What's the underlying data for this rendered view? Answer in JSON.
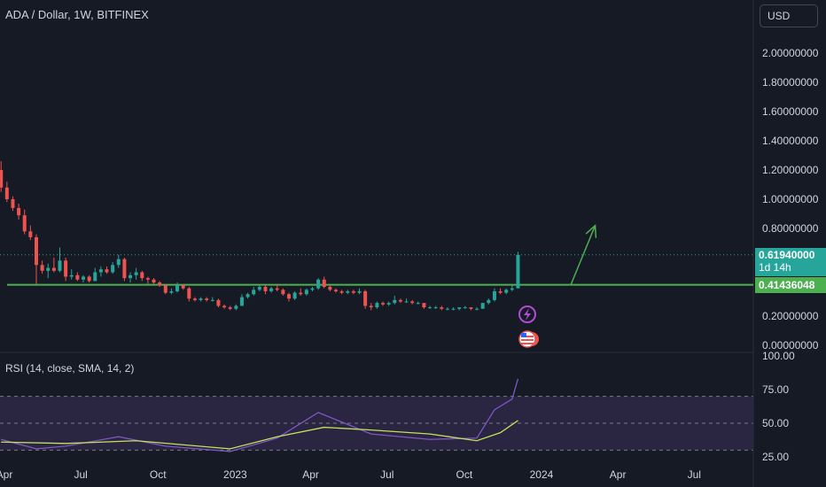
{
  "header": {
    "symbol_title": "ADA / Dollar, 1W, BITFINEX",
    "currency_button": "USD"
  },
  "price_axis": {
    "ticks": [
      "2.00000000",
      "1.80000000",
      "1.60000000",
      "1.40000000",
      "1.20000000",
      "1.00000000",
      "0.80000000",
      "0.20000000",
      "0.00000000"
    ]
  },
  "price_tags": {
    "current_price": "0.61940000",
    "countdown": "1d 14h",
    "level_price": "0.41436048"
  },
  "rsi_panel": {
    "title": "RSI (14, close, SMA, 14, 2)",
    "ticks": [
      "100.00",
      "75.00",
      "50.00",
      "25.00"
    ]
  },
  "time_axis": {
    "labels": [
      "Apr",
      "Jul",
      "Oct",
      "2023",
      "Apr",
      "Jul",
      "Oct",
      "2024",
      "Apr",
      "Jul"
    ]
  },
  "colors": {
    "up": "#26a69a",
    "down": "#ef5350",
    "support_line": "#4caf50",
    "rsi_line": "#7e57c2",
    "rsi_ma": "#c5e15e",
    "rsi_band": "#2a2540",
    "background": "#161a25"
  },
  "icons": [
    "lightning-event-icon",
    "us-flag-event-icon"
  ],
  "chart_data": [
    {
      "type": "candlestick",
      "title": "ADA / Dollar, 1W, BITFINEX",
      "ylim": [
        0,
        2.1
      ],
      "x_range": [
        "2022-04-01",
        "2024-09-01"
      ],
      "support_level": 0.41436048,
      "current_price": 0.6194,
      "projection_arrow": {
        "from": [
          "2024-02-05",
          0.41436048
        ],
        "to": [
          "2024-03-05",
          0.82
        ]
      },
      "ohlc": [
        [
          "2022-03-28",
          1.2,
          1.26,
          1.05,
          1.08
        ],
        [
          "2022-04-04",
          1.08,
          1.12,
          0.98,
          1.0
        ],
        [
          "2022-04-11",
          1.0,
          1.02,
          0.92,
          0.94
        ],
        [
          "2022-04-18",
          0.94,
          0.97,
          0.86,
          0.89
        ],
        [
          "2022-04-25",
          0.89,
          0.93,
          0.76,
          0.78
        ],
        [
          "2022-05-02",
          0.78,
          0.82,
          0.72,
          0.74
        ],
        [
          "2022-05-09",
          0.74,
          0.76,
          0.42,
          0.55
        ],
        [
          "2022-05-16",
          0.55,
          0.58,
          0.49,
          0.51
        ],
        [
          "2022-05-23",
          0.51,
          0.56,
          0.46,
          0.53
        ],
        [
          "2022-05-30",
          0.53,
          0.6,
          0.5,
          0.51
        ],
        [
          "2022-06-06",
          0.51,
          0.67,
          0.5,
          0.58
        ],
        [
          "2022-06-13",
          0.58,
          0.6,
          0.44,
          0.47
        ],
        [
          "2022-06-20",
          0.47,
          0.52,
          0.45,
          0.48
        ],
        [
          "2022-06-27",
          0.48,
          0.5,
          0.44,
          0.45
        ],
        [
          "2022-07-04",
          0.45,
          0.48,
          0.43,
          0.47
        ],
        [
          "2022-07-11",
          0.47,
          0.48,
          0.43,
          0.44
        ],
        [
          "2022-07-18",
          0.44,
          0.53,
          0.44,
          0.5
        ],
        [
          "2022-07-25",
          0.5,
          0.54,
          0.47,
          0.52
        ],
        [
          "2022-08-01",
          0.52,
          0.54,
          0.49,
          0.5
        ],
        [
          "2022-08-08",
          0.5,
          0.57,
          0.49,
          0.55
        ],
        [
          "2022-08-15",
          0.55,
          0.62,
          0.53,
          0.59
        ],
        [
          "2022-08-22",
          0.59,
          0.6,
          0.44,
          0.46
        ],
        [
          "2022-08-29",
          0.46,
          0.5,
          0.43,
          0.48
        ],
        [
          "2022-09-05",
          0.48,
          0.53,
          0.45,
          0.5
        ],
        [
          "2022-09-12",
          0.5,
          0.51,
          0.44,
          0.46
        ],
        [
          "2022-09-19",
          0.46,
          0.47,
          0.42,
          0.45
        ],
        [
          "2022-09-26",
          0.45,
          0.46,
          0.42,
          0.43
        ],
        [
          "2022-10-03",
          0.43,
          0.44,
          0.4,
          0.41
        ],
        [
          "2022-10-10",
          0.41,
          0.42,
          0.35,
          0.36
        ],
        [
          "2022-10-17",
          0.36,
          0.39,
          0.35,
          0.37
        ],
        [
          "2022-10-24",
          0.37,
          0.43,
          0.36,
          0.41
        ],
        [
          "2022-10-31",
          0.41,
          0.42,
          0.38,
          0.39
        ],
        [
          "2022-11-07",
          0.39,
          0.4,
          0.3,
          0.32
        ],
        [
          "2022-11-14",
          0.32,
          0.33,
          0.3,
          0.31
        ],
        [
          "2022-11-21",
          0.31,
          0.33,
          0.3,
          0.32
        ],
        [
          "2022-11-28",
          0.32,
          0.33,
          0.3,
          0.31
        ],
        [
          "2022-12-05",
          0.31,
          0.33,
          0.3,
          0.31
        ],
        [
          "2022-12-12",
          0.31,
          0.32,
          0.26,
          0.27
        ],
        [
          "2022-12-19",
          0.27,
          0.28,
          0.25,
          0.26
        ],
        [
          "2022-12-26",
          0.26,
          0.27,
          0.24,
          0.25
        ],
        [
          "2023-01-02",
          0.25,
          0.28,
          0.24,
          0.27
        ],
        [
          "2023-01-09",
          0.27,
          0.35,
          0.27,
          0.33
        ],
        [
          "2023-01-16",
          0.33,
          0.36,
          0.32,
          0.35
        ],
        [
          "2023-01-23",
          0.35,
          0.4,
          0.34,
          0.38
        ],
        [
          "2023-01-30",
          0.38,
          0.41,
          0.37,
          0.4
        ],
        [
          "2023-02-06",
          0.4,
          0.41,
          0.35,
          0.37
        ],
        [
          "2023-02-13",
          0.37,
          0.4,
          0.36,
          0.39
        ],
        [
          "2023-02-20",
          0.39,
          0.42,
          0.37,
          0.38
        ],
        [
          "2023-02-27",
          0.38,
          0.39,
          0.34,
          0.35
        ],
        [
          "2023-03-06",
          0.35,
          0.36,
          0.3,
          0.32
        ],
        [
          "2023-03-13",
          0.32,
          0.37,
          0.31,
          0.36
        ],
        [
          "2023-03-20",
          0.36,
          0.39,
          0.34,
          0.35
        ],
        [
          "2023-03-27",
          0.35,
          0.39,
          0.34,
          0.38
        ],
        [
          "2023-04-03",
          0.38,
          0.4,
          0.37,
          0.39
        ],
        [
          "2023-04-10",
          0.39,
          0.46,
          0.38,
          0.45
        ],
        [
          "2023-04-17",
          0.45,
          0.47,
          0.39,
          0.4
        ],
        [
          "2023-04-24",
          0.4,
          0.41,
          0.37,
          0.38
        ],
        [
          "2023-05-01",
          0.38,
          0.39,
          0.36,
          0.37
        ],
        [
          "2023-05-08",
          0.37,
          0.38,
          0.35,
          0.36
        ],
        [
          "2023-05-15",
          0.36,
          0.38,
          0.35,
          0.37
        ],
        [
          "2023-05-22",
          0.37,
          0.38,
          0.35,
          0.36
        ],
        [
          "2023-05-29",
          0.36,
          0.39,
          0.35,
          0.37
        ],
        [
          "2023-06-05",
          0.37,
          0.38,
          0.25,
          0.27
        ],
        [
          "2023-06-12",
          0.27,
          0.29,
          0.24,
          0.26
        ],
        [
          "2023-06-19",
          0.26,
          0.3,
          0.25,
          0.29
        ],
        [
          "2023-06-26",
          0.29,
          0.3,
          0.27,
          0.28
        ],
        [
          "2023-07-03",
          0.28,
          0.3,
          0.27,
          0.29
        ],
        [
          "2023-07-10",
          0.29,
          0.34,
          0.28,
          0.31
        ],
        [
          "2023-07-17",
          0.31,
          0.32,
          0.29,
          0.3
        ],
        [
          "2023-07-24",
          0.3,
          0.32,
          0.29,
          0.3
        ],
        [
          "2023-07-31",
          0.3,
          0.31,
          0.28,
          0.29
        ],
        [
          "2023-08-07",
          0.29,
          0.3,
          0.28,
          0.29
        ],
        [
          "2023-08-14",
          0.29,
          0.29,
          0.25,
          0.26
        ],
        [
          "2023-08-21",
          0.26,
          0.27,
          0.25,
          0.26
        ],
        [
          "2023-08-28",
          0.26,
          0.27,
          0.25,
          0.26
        ],
        [
          "2023-09-04",
          0.26,
          0.27,
          0.24,
          0.25
        ],
        [
          "2023-09-11",
          0.25,
          0.26,
          0.24,
          0.25
        ],
        [
          "2023-09-18",
          0.25,
          0.26,
          0.24,
          0.25
        ],
        [
          "2023-09-25",
          0.25,
          0.26,
          0.24,
          0.26
        ],
        [
          "2023-10-02",
          0.26,
          0.27,
          0.25,
          0.26
        ],
        [
          "2023-10-09",
          0.26,
          0.26,
          0.24,
          0.25
        ],
        [
          "2023-10-16",
          0.25,
          0.26,
          0.24,
          0.25
        ],
        [
          "2023-10-23",
          0.25,
          0.29,
          0.25,
          0.29
        ],
        [
          "2023-10-30",
          0.29,
          0.32,
          0.28,
          0.31
        ],
        [
          "2023-11-06",
          0.31,
          0.39,
          0.3,
          0.37
        ],
        [
          "2023-11-13",
          0.37,
          0.39,
          0.35,
          0.36
        ],
        [
          "2023-11-20",
          0.36,
          0.39,
          0.35,
          0.38
        ],
        [
          "2023-11-27",
          0.38,
          0.41,
          0.37,
          0.39
        ],
        [
          "2023-12-04",
          0.39,
          0.64,
          0.39,
          0.6194
        ]
      ]
    },
    {
      "type": "line",
      "title": "RSI (14, close, SMA, 14, 2)",
      "ylim": [
        22,
        100
      ],
      "ticks": [
        100,
        75,
        50,
        25
      ],
      "band": [
        30,
        70
      ],
      "series": [
        {
          "x": [
            "2022-03-28",
            "2022-05-09",
            "2022-06-13",
            "2022-08-15",
            "2022-10-10",
            "2022-12-26",
            "2023-02-20",
            "2023-04-10",
            "2023-06-12",
            "2023-08-21",
            "2023-10-16",
            "2023-11-06",
            "2023-11-27",
            "2023-12-04"
          ],
          "y": [
            38,
            31,
            33,
            40,
            33,
            29,
            39,
            58,
            42,
            38,
            39,
            60,
            68,
            83
          ]
        },
        {
          "x": [
            "2022-03-28",
            "2022-06-13",
            "2022-09-05",
            "2022-12-26",
            "2023-02-20",
            "2023-04-17",
            "2023-06-12",
            "2023-08-21",
            "2023-10-16",
            "2023-11-13",
            "2023-12-04"
          ],
          "y": [
            36,
            35,
            37,
            31,
            40,
            47,
            45,
            42,
            37,
            43,
            52
          ]
        }
      ]
    }
  ]
}
